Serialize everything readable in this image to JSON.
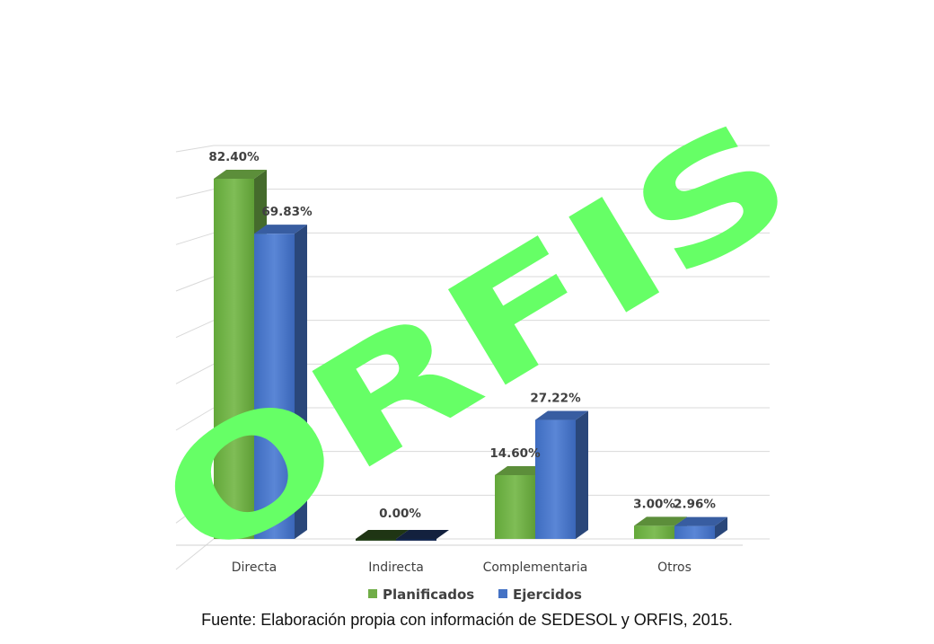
{
  "chart_data": {
    "type": "bar",
    "categories": [
      "Directa",
      "Indirecta",
      "Complementaria",
      "Otros"
    ],
    "series": [
      {
        "name": "Planificados",
        "values": [
          82.4,
          0.0,
          14.6,
          3.0
        ],
        "labels": [
          "82.40%",
          "",
          "14.60%",
          "3.00%"
        ],
        "color": "#70ad47"
      },
      {
        "name": "Ejercidos",
        "values": [
          69.83,
          0.0,
          27.22,
          2.96
        ],
        "labels": [
          "69.83%",
          "0.00%",
          "27.22%",
          "2.96%"
        ],
        "color": "#4472c4"
      }
    ],
    "ylim": [
      0,
      90
    ],
    "grid": true,
    "legend": "bottom",
    "style": "3d-clustered-column"
  },
  "caption": "Fuente: Elaboración propia con información de SEDESOL y ORFIS, 2015.",
  "watermark": {
    "text": "ORFIS",
    "color": "#66ff66"
  }
}
